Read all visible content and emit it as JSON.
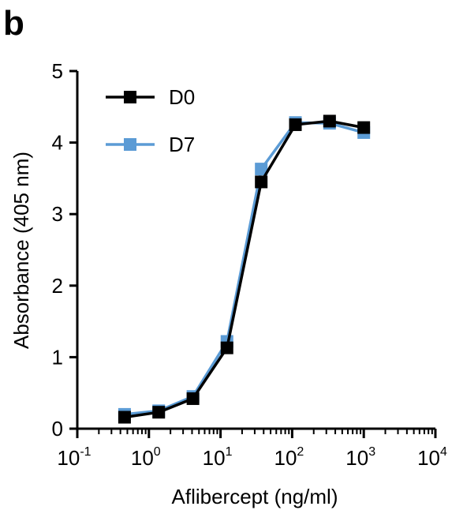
{
  "panel_label": "b",
  "chart_data": {
    "type": "line",
    "xscale": "log",
    "xlabel": "Aflibercept (ng/ml)",
    "ylabel": "Absorbance (405 nm)",
    "xlim": [
      0.1,
      10000
    ],
    "ylim": [
      0,
      5
    ],
    "y_ticks": [
      "0",
      "1",
      "2",
      "3",
      "4",
      "5"
    ],
    "x_ticks": [
      {
        "value": 0.1,
        "base": "10",
        "exp": "-1"
      },
      {
        "value": 1,
        "base": "10",
        "exp": "0"
      },
      {
        "value": 10,
        "base": "10",
        "exp": "1"
      },
      {
        "value": 100,
        "base": "10",
        "exp": "2"
      },
      {
        "value": 1000,
        "base": "10",
        "exp": "3"
      },
      {
        "value": 10000,
        "base": "10",
        "exp": "4"
      }
    ],
    "grid": false,
    "legend_position": "top-left",
    "x": [
      0.457,
      1.37,
      4.12,
      12.3,
      37.0,
      111,
      333,
      1000
    ],
    "series": [
      {
        "name": "D0",
        "color": "#000000",
        "marker": "square",
        "values": [
          0.16,
          0.23,
          0.42,
          1.13,
          3.45,
          4.25,
          4.3,
          4.21
        ]
      },
      {
        "name": "D7",
        "color": "#5b9bd5",
        "marker": "square",
        "values": [
          0.2,
          0.25,
          0.45,
          1.22,
          3.63,
          4.28,
          4.27,
          4.14
        ]
      }
    ]
  }
}
